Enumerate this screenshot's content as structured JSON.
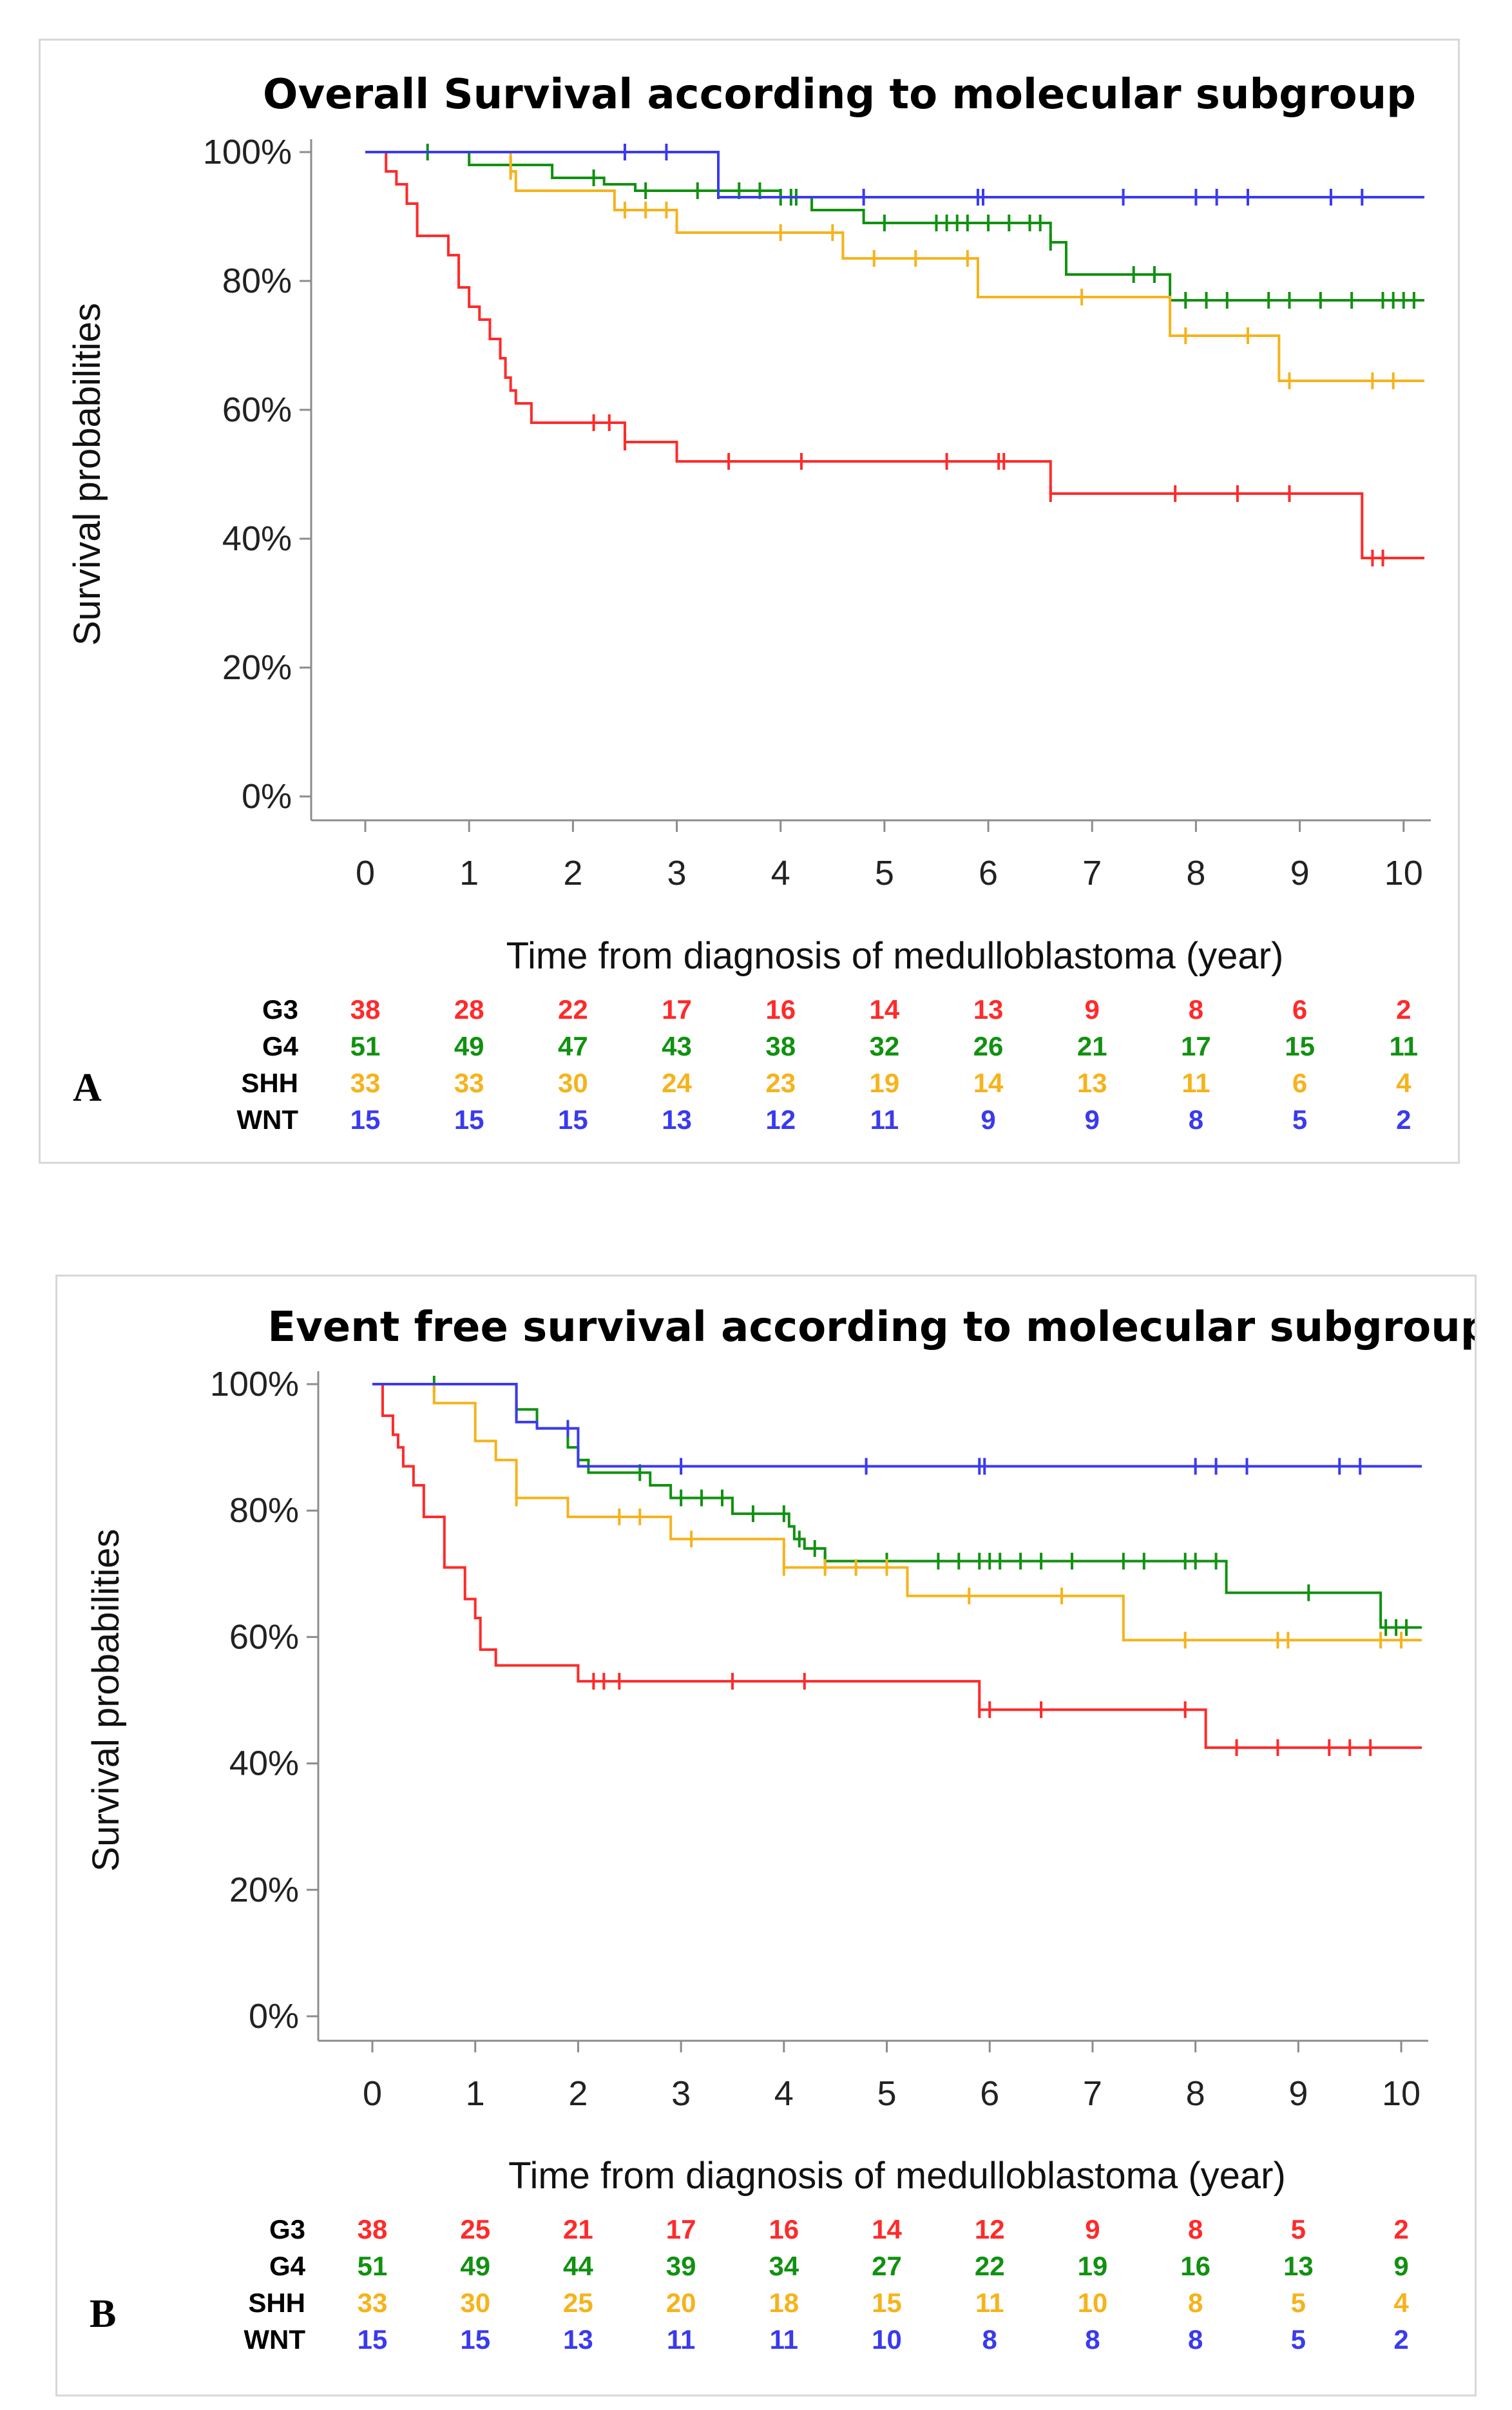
{
  "chart_data": [
    {
      "type": "line",
      "panel_label": "A",
      "title": "Overall Survival according to molecular subgroup",
      "xlabel": "Time from diagnosis of medulloblastoma (year)",
      "ylabel": "Survival probabilities",
      "xlim": [
        0,
        10.2
      ],
      "ylim": [
        0,
        1
      ],
      "x_ticks": [
        "0",
        "1",
        "2",
        "3",
        "4",
        "5",
        "6",
        "7",
        "8",
        "9",
        "10"
      ],
      "y_ticks": [
        "0%",
        "20%",
        "40%",
        "60%",
        "80%",
        "100%"
      ],
      "series": [
        {
          "name": "G3",
          "color": "#ff2a2a",
          "steps": [
            [
              0,
              1.0
            ],
            [
              0.2,
              0.97
            ],
            [
              0.3,
              0.95
            ],
            [
              0.4,
              0.92
            ],
            [
              0.5,
              0.87
            ],
            [
              0.8,
              0.84
            ],
            [
              0.9,
              0.79
            ],
            [
              1.0,
              0.76
            ],
            [
              1.1,
              0.74
            ],
            [
              1.2,
              0.71
            ],
            [
              1.3,
              0.68
            ],
            [
              1.35,
              0.65
            ],
            [
              1.4,
              0.63
            ],
            [
              1.45,
              0.61
            ],
            [
              1.6,
              0.58
            ],
            [
              2.5,
              0.55
            ],
            [
              3.0,
              0.52
            ],
            [
              6.6,
              0.47
            ],
            [
              9.6,
              0.37
            ]
          ],
          "end": 10.2,
          "censors": [
            2.2,
            2.35,
            2.5,
            3.5,
            4.2,
            5.6,
            6.1,
            6.15,
            6.6,
            7.8,
            8.4,
            8.9,
            9.7,
            9.8
          ]
        },
        {
          "name": "G4",
          "color": "#119111",
          "steps": [
            [
              0,
              1.0
            ],
            [
              1.0,
              0.98
            ],
            [
              1.8,
              0.96
            ],
            [
              2.3,
              0.95
            ],
            [
              2.6,
              0.94
            ],
            [
              4.0,
              0.93
            ],
            [
              4.3,
              0.91
            ],
            [
              4.8,
              0.89
            ],
            [
              6.6,
              0.86
            ],
            [
              6.75,
              0.81
            ],
            [
              7.75,
              0.77
            ]
          ],
          "end": 10.2,
          "censors": [
            0.6,
            1.4,
            2.2,
            2.7,
            3.2,
            3.4,
            3.6,
            3.8,
            4.0,
            4.1,
            4.15,
            5.0,
            5.5,
            5.6,
            5.7,
            5.8,
            6.0,
            6.2,
            6.4,
            6.5,
            6.6,
            7.4,
            7.6,
            7.9,
            8.1,
            8.3,
            8.7,
            8.9,
            9.2,
            9.5,
            9.8,
            9.9,
            10.0,
            10.1
          ]
        },
        {
          "name": "SHH",
          "color": "#f5b31c",
          "steps": [
            [
              0,
              1.0
            ],
            [
              1.4,
              0.97
            ],
            [
              1.45,
              0.94
            ],
            [
              2.4,
              0.91
            ],
            [
              3.0,
              0.875
            ],
            [
              4.6,
              0.835
            ],
            [
              5.9,
              0.775
            ],
            [
              7.75,
              0.715
            ],
            [
              8.8,
              0.645
            ]
          ],
          "end": 10.2,
          "censors": [
            1.4,
            2.5,
            2.7,
            2.9,
            4.0,
            4.5,
            4.9,
            5.3,
            5.8,
            6.9,
            7.9,
            8.5,
            8.9,
            9.7,
            9.9
          ]
        },
        {
          "name": "WNT",
          "color": "#3a3aef",
          "steps": [
            [
              0,
              1.0
            ],
            [
              3.4,
              0.93
            ]
          ],
          "end": 10.2,
          "censors": [
            2.5,
            2.9,
            4.8,
            5.9,
            5.95,
            7.3,
            8.0,
            8.2,
            8.5,
            9.3,
            9.6
          ]
        }
      ],
      "risk_table": {
        "rows": [
          {
            "label": "G3",
            "color": "#ff2a2a",
            "values": [
              "38",
              "28",
              "22",
              "17",
              "16",
              "14",
              "13",
              "9",
              "8",
              "6",
              "2"
            ]
          },
          {
            "label": "G4",
            "color": "#119111",
            "values": [
              "51",
              "49",
              "47",
              "43",
              "38",
              "32",
              "26",
              "21",
              "17",
              "15",
              "11"
            ]
          },
          {
            "label": "SHH",
            "color": "#f5b31c",
            "values": [
              "33",
              "33",
              "30",
              "24",
              "23",
              "19",
              "14",
              "13",
              "11",
              "6",
              "4"
            ]
          },
          {
            "label": "WNT",
            "color": "#3a3aef",
            "values": [
              "15",
              "15",
              "15",
              "13",
              "12",
              "11",
              "9",
              "9",
              "8",
              "5",
              "2"
            ]
          }
        ]
      }
    },
    {
      "type": "line",
      "panel_label": "B",
      "title": "Event free survival according to molecular subgroup",
      "xlabel": "Time from diagnosis of medulloblastoma (year)",
      "ylabel": "Survival probabilities",
      "xlim": [
        0,
        10.2
      ],
      "ylim": [
        0,
        1
      ],
      "x_ticks": [
        "0",
        "1",
        "2",
        "3",
        "4",
        "5",
        "6",
        "7",
        "8",
        "9",
        "10"
      ],
      "y_ticks": [
        "0%",
        "20%",
        "40%",
        "60%",
        "80%",
        "100%"
      ],
      "series": [
        {
          "name": "G3",
          "color": "#ff2a2a",
          "steps": [
            [
              0,
              1.0
            ],
            [
              0.1,
              0.95
            ],
            [
              0.2,
              0.92
            ],
            [
              0.25,
              0.9
            ],
            [
              0.3,
              0.87
            ],
            [
              0.4,
              0.84
            ],
            [
              0.5,
              0.79
            ],
            [
              0.7,
              0.71
            ],
            [
              0.9,
              0.66
            ],
            [
              1.0,
              0.63
            ],
            [
              1.05,
              0.58
            ],
            [
              1.2,
              0.555
            ],
            [
              2.0,
              0.53
            ],
            [
              5.9,
              0.485
            ],
            [
              8.1,
              0.425
            ]
          ],
          "end": 10.2,
          "censors": [
            2.15,
            2.25,
            2.4,
            3.5,
            4.2,
            5.9,
            6.0,
            6.5,
            7.9,
            8.4,
            8.8,
            9.3,
            9.5,
            9.7
          ]
        },
        {
          "name": "G4",
          "color": "#119111",
          "steps": [
            [
              0,
              1.0
            ],
            [
              1.4,
              0.96
            ],
            [
              1.6,
              0.93
            ],
            [
              1.9,
              0.9
            ],
            [
              2.0,
              0.88
            ],
            [
              2.1,
              0.86
            ],
            [
              2.7,
              0.84
            ],
            [
              2.9,
              0.82
            ],
            [
              3.5,
              0.795
            ],
            [
              4.05,
              0.775
            ],
            [
              4.1,
              0.755
            ],
            [
              4.2,
              0.74
            ],
            [
              4.4,
              0.72
            ],
            [
              8.3,
              0.67
            ],
            [
              9.8,
              0.615
            ]
          ],
          "end": 10.2,
          "censors": [
            0.6,
            1.4,
            2.6,
            3.0,
            3.2,
            3.4,
            3.7,
            4.0,
            4.15,
            4.3,
            4.4,
            5.0,
            5.5,
            5.7,
            5.9,
            6.0,
            6.1,
            6.3,
            6.5,
            6.8,
            7.3,
            7.5,
            7.9,
            8.0,
            8.2,
            9.1,
            9.85,
            9.95,
            10.05
          ]
        },
        {
          "name": "SHH",
          "color": "#f5b31c",
          "steps": [
            [
              0,
              1.0
            ],
            [
              0.6,
              0.97
            ],
            [
              1.0,
              0.91
            ],
            [
              1.2,
              0.88
            ],
            [
              1.4,
              0.82
            ],
            [
              1.9,
              0.79
            ],
            [
              2.9,
              0.755
            ],
            [
              4.0,
              0.71
            ],
            [
              5.2,
              0.665
            ],
            [
              7.3,
              0.595
            ]
          ],
          "end": 10.2,
          "censors": [
            1.4,
            2.4,
            2.6,
            3.1,
            4.0,
            4.4,
            4.7,
            5.0,
            5.8,
            6.7,
            7.9,
            8.8,
            8.9,
            9.8,
            10.0
          ]
        },
        {
          "name": "WNT",
          "color": "#3a3aef",
          "steps": [
            [
              0,
              1.0
            ],
            [
              1.4,
              0.94
            ],
            [
              1.6,
              0.93
            ],
            [
              2.0,
              0.87
            ]
          ],
          "end": 10.2,
          "censors": [
            1.9,
            3.0,
            4.8,
            5.9,
            5.95,
            8.0,
            8.2,
            8.5,
            9.4,
            9.6
          ]
        }
      ],
      "risk_table": {
        "rows": [
          {
            "label": "G3",
            "color": "#ff2a2a",
            "values": [
              "38",
              "25",
              "21",
              "17",
              "16",
              "14",
              "12",
              "9",
              "8",
              "5",
              "2"
            ]
          },
          {
            "label": "G4",
            "color": "#119111",
            "values": [
              "51",
              "49",
              "44",
              "39",
              "34",
              "27",
              "22",
              "19",
              "16",
              "13",
              "9"
            ]
          },
          {
            "label": "SHH",
            "color": "#f5b31c",
            "values": [
              "33",
              "30",
              "25",
              "20",
              "18",
              "15",
              "11",
              "10",
              "8",
              "5",
              "4"
            ]
          },
          {
            "label": "WNT",
            "color": "#3a3aef",
            "values": [
              "15",
              "15",
              "13",
              "11",
              "11",
              "10",
              "8",
              "8",
              "8",
              "5",
              "2"
            ]
          }
        ]
      }
    }
  ]
}
